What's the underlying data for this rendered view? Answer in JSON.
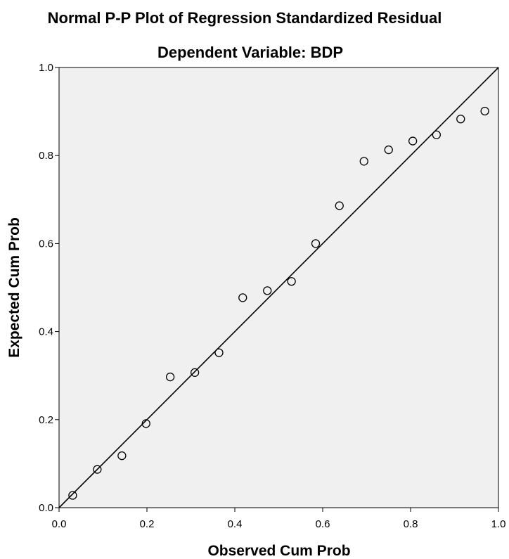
{
  "chart_data": {
    "type": "scatter",
    "title": "Normal P-P Plot of Regression Standardized Residual",
    "subtitle": "Dependent Variable: BDP",
    "xlabel": "Observed Cum Prob",
    "ylabel": "Expected Cum Prob",
    "xlim": [
      0.0,
      1.0
    ],
    "ylim": [
      0.0,
      1.0
    ],
    "xticks": [
      "0.0",
      "0.2",
      "0.4",
      "0.6",
      "0.8",
      "1.0"
    ],
    "yticks": [
      "0.0",
      "0.2",
      "0.4",
      "0.6",
      "0.8",
      "1.0"
    ],
    "grid": false,
    "reference_line": {
      "from": [
        0.0,
        0.0
      ],
      "to": [
        1.0,
        1.0
      ]
    },
    "points": [
      {
        "x": 0.031,
        "y": 0.028
      },
      {
        "x": 0.087,
        "y": 0.087
      },
      {
        "x": 0.143,
        "y": 0.118
      },
      {
        "x": 0.198,
        "y": 0.191
      },
      {
        "x": 0.253,
        "y": 0.297
      },
      {
        "x": 0.309,
        "y": 0.307
      },
      {
        "x": 0.364,
        "y": 0.352
      },
      {
        "x": 0.418,
        "y": 0.477
      },
      {
        "x": 0.474,
        "y": 0.493
      },
      {
        "x": 0.529,
        "y": 0.514
      },
      {
        "x": 0.584,
        "y": 0.6
      },
      {
        "x": 0.638,
        "y": 0.686
      },
      {
        "x": 0.694,
        "y": 0.787
      },
      {
        "x": 0.75,
        "y": 0.813
      },
      {
        "x": 0.805,
        "y": 0.833
      },
      {
        "x": 0.859,
        "y": 0.847
      },
      {
        "x": 0.914,
        "y": 0.883
      },
      {
        "x": 0.969,
        "y": 0.901
      }
    ],
    "colors": {
      "plot_background": "#f0f0f0",
      "marker_edge": "#000000",
      "line": "#000000"
    }
  }
}
